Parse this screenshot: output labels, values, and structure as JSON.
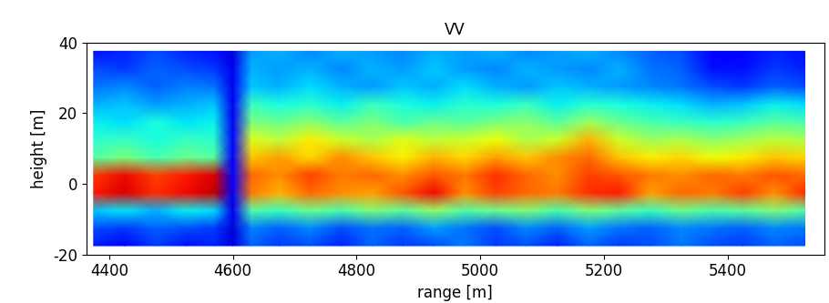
{
  "chart_data": {
    "type": "heatmap",
    "title": "VV",
    "x_label": "range [m]",
    "y_label": "height [m]",
    "x": [
      4375,
      4425,
      4475,
      4525,
      4570,
      4600,
      4630,
      4675,
      4725,
      4775,
      4825,
      4875,
      4925,
      4975,
      5025,
      5075,
      5125,
      5175,
      5225,
      5275,
      5325,
      5375,
      5425,
      5475,
      5525
    ],
    "y": [
      -17.5,
      -12.5,
      -7.5,
      -2.5,
      2.5,
      7.5,
      12.5,
      17.5,
      22.5,
      27.5,
      32.5,
      37.5
    ],
    "cells": [
      [
        0.15,
        0.12,
        0.18,
        0.14,
        0.16,
        0.08,
        0.22,
        0.18,
        0.2,
        0.16,
        0.22,
        0.18,
        0.2,
        0.24,
        0.18,
        0.2,
        0.16,
        0.22,
        0.18,
        0.2,
        0.24,
        0.2,
        0.18,
        0.22,
        0.2
      ],
      [
        0.2,
        0.18,
        0.22,
        0.2,
        0.18,
        0.08,
        0.25,
        0.22,
        0.26,
        0.2,
        0.24,
        0.22,
        0.28,
        0.24,
        0.2,
        0.26,
        0.22,
        0.28,
        0.24,
        0.22,
        0.26,
        0.24,
        0.22,
        0.26,
        0.24
      ],
      [
        0.32,
        0.35,
        0.3,
        0.36,
        0.34,
        0.1,
        0.45,
        0.42,
        0.48,
        0.44,
        0.5,
        0.46,
        0.52,
        0.45,
        0.48,
        0.5,
        0.44,
        0.5,
        0.46,
        0.42,
        0.48,
        0.44,
        0.46,
        0.5,
        0.45
      ],
      [
        0.88,
        0.92,
        0.86,
        0.9,
        0.94,
        0.1,
        0.78,
        0.72,
        0.8,
        0.76,
        0.74,
        0.82,
        0.9,
        0.76,
        0.84,
        0.8,
        0.78,
        0.86,
        0.88,
        0.74,
        0.8,
        0.78,
        0.84,
        0.76,
        0.86
      ],
      [
        0.85,
        0.9,
        0.84,
        0.88,
        0.92,
        0.12,
        0.8,
        0.76,
        0.84,
        0.78,
        0.8,
        0.76,
        0.82,
        0.78,
        0.86,
        0.8,
        0.76,
        0.84,
        0.82,
        0.78,
        0.76,
        0.8,
        0.78,
        0.82,
        0.8
      ],
      [
        0.45,
        0.5,
        0.44,
        0.48,
        0.46,
        0.12,
        0.7,
        0.74,
        0.68,
        0.76,
        0.7,
        0.66,
        0.72,
        0.68,
        0.74,
        0.7,
        0.76,
        0.8,
        0.7,
        0.66,
        0.68,
        0.64,
        0.66,
        0.7,
        0.68
      ],
      [
        0.4,
        0.42,
        0.38,
        0.42,
        0.4,
        0.12,
        0.62,
        0.58,
        0.66,
        0.6,
        0.56,
        0.62,
        0.58,
        0.6,
        0.64,
        0.56,
        0.6,
        0.72,
        0.6,
        0.54,
        0.56,
        0.52,
        0.55,
        0.58,
        0.56
      ],
      [
        0.36,
        0.34,
        0.38,
        0.35,
        0.36,
        0.1,
        0.5,
        0.48,
        0.52,
        0.46,
        0.5,
        0.44,
        0.48,
        0.46,
        0.5,
        0.52,
        0.46,
        0.54,
        0.48,
        0.44,
        0.42,
        0.4,
        0.42,
        0.46,
        0.44
      ],
      [
        0.3,
        0.32,
        0.28,
        0.3,
        0.32,
        0.1,
        0.42,
        0.38,
        0.4,
        0.36,
        0.42,
        0.38,
        0.36,
        0.4,
        0.38,
        0.42,
        0.36,
        0.4,
        0.38,
        0.36,
        0.34,
        0.3,
        0.32,
        0.36,
        0.34
      ],
      [
        0.24,
        0.26,
        0.22,
        0.25,
        0.24,
        0.1,
        0.32,
        0.3,
        0.34,
        0.3,
        0.28,
        0.32,
        0.3,
        0.34,
        0.3,
        0.28,
        0.32,
        0.3,
        0.28,
        0.26,
        0.24,
        0.2,
        0.18,
        0.22,
        0.2
      ],
      [
        0.2,
        0.18,
        0.22,
        0.2,
        0.18,
        0.1,
        0.3,
        0.28,
        0.3,
        0.26,
        0.3,
        0.28,
        0.32,
        0.28,
        0.26,
        0.3,
        0.28,
        0.26,
        0.3,
        0.24,
        0.22,
        0.14,
        0.14,
        0.18,
        0.16
      ],
      [
        0.14,
        0.16,
        0.2,
        0.16,
        0.14,
        0.08,
        0.28,
        0.3,
        0.26,
        0.3,
        0.28,
        0.26,
        0.3,
        0.28,
        0.3,
        0.26,
        0.28,
        0.3,
        0.26,
        0.22,
        0.2,
        0.12,
        0.12,
        0.16,
        0.14
      ]
    ],
    "color_range": [
      0,
      1
    ],
    "xlim": [
      4363,
      5556
    ],
    "ylim": [
      -20,
      40
    ],
    "xticks": [
      4400,
      4600,
      4800,
      5000,
      5200,
      5400
    ],
    "yticks": [
      -20,
      0,
      20,
      40
    ]
  }
}
